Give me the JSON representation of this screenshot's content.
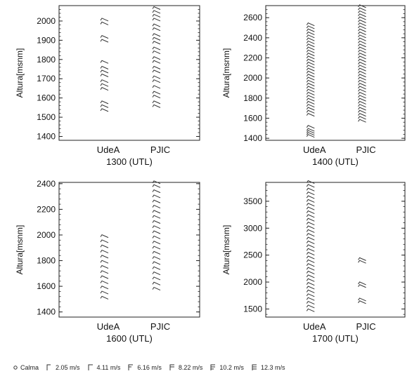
{
  "colors": {
    "axis": "#222222",
    "barb": "#333333",
    "background": "#ffffff"
  },
  "chart_data": [
    {
      "type": "scatter",
      "xlabel": "1300 (UTL)",
      "ylabel": "Altura[msnm]",
      "ylim": [
        1380,
        2080
      ],
      "yticks": [
        1400,
        1500,
        1600,
        1700,
        1800,
        1900,
        2000
      ],
      "categories": [
        "UdeA",
        "PJIC"
      ],
      "series": [
        {
          "name": "UdeA",
          "category": 0,
          "heights": [
            1530,
            1550,
            1570,
            1640,
            1660,
            1680,
            1710,
            1730,
            1750,
            1780,
            1890,
            1910,
            1980,
            2000
          ]
        },
        {
          "name": "PJIC",
          "category": 1,
          "heights": [
            1550,
            1570,
            1600,
            1620,
            1650,
            1680,
            1700,
            1730,
            1750,
            1780,
            1800,
            1830,
            1850,
            1880,
            1900,
            1920,
            1950,
            1970,
            2000,
            2020,
            2040,
            2060
          ]
        }
      ]
    },
    {
      "type": "scatter",
      "xlabel": "1400 (UTL)",
      "ylabel": "Altura[msnm]",
      "ylim": [
        1380,
        2720
      ],
      "yticks": [
        1400,
        1600,
        1800,
        2000,
        2200,
        2400,
        2600
      ],
      "categories": [
        "UdeA",
        "PJIC"
      ],
      "series": [
        {
          "name": "UdeA",
          "category": 0,
          "heights": [
            1410,
            1430,
            1450,
            1470,
            1500,
            1620,
            1650,
            1680,
            1710,
            1740,
            1770,
            1800,
            1830,
            1860,
            1890,
            1920,
            1950,
            1980,
            2010,
            2040,
            2070,
            2100,
            2130,
            2160,
            2190,
            2220,
            2250,
            2280,
            2310,
            2340,
            2370,
            2400,
            2430,
            2460,
            2490,
            2520
          ]
        },
        {
          "name": "PJIC",
          "category": 1,
          "heights": [
            1560,
            1590,
            1620,
            1650,
            1680,
            1710,
            1740,
            1770,
            1800,
            1830,
            1860,
            1890,
            1920,
            1950,
            1980,
            2010,
            2040,
            2070,
            2100,
            2130,
            2160,
            2190,
            2220,
            2250,
            2280,
            2310,
            2340,
            2370,
            2400,
            2430,
            2460,
            2490,
            2520,
            2550,
            2580,
            2610,
            2640,
            2670,
            2700
          ]
        }
      ]
    },
    {
      "type": "scatter",
      "xlabel": "1600 (UTL)",
      "ylabel": "Altura[msnm]",
      "ylim": [
        1360,
        2410
      ],
      "yticks": [
        1400,
        1600,
        1800,
        2000,
        2200,
        2400
      ],
      "categories": [
        "UdeA",
        "PJIC"
      ],
      "series": [
        {
          "name": "UdeA",
          "category": 0,
          "heights": [
            1500,
            1540,
            1580,
            1620,
            1660,
            1700,
            1740,
            1780,
            1820,
            1860,
            1900,
            1940,
            1980
          ]
        },
        {
          "name": "PJIC",
          "category": 1,
          "heights": [
            1570,
            1610,
            1650,
            1690,
            1730,
            1770,
            1810,
            1850,
            1890,
            1930,
            1970,
            2010,
            2050,
            2090,
            2130,
            2170,
            2210,
            2250,
            2290,
            2330,
            2370,
            2400
          ]
        }
      ]
    },
    {
      "type": "scatter",
      "xlabel": "1700 (UTL)",
      "ylabel": "Altura[msnm]",
      "ylim": [
        1350,
        3850
      ],
      "yticks": [
        1500,
        2000,
        2500,
        3000,
        3500
      ],
      "categories": [
        "UdeA",
        "PJIC"
      ],
      "series": [
        {
          "name": "UdeA",
          "category": 0,
          "heights": [
            1450,
            1520,
            1590,
            1660,
            1730,
            1800,
            1870,
            1940,
            2010,
            2080,
            2150,
            2220,
            2290,
            2360,
            2430,
            2500,
            2570,
            2640,
            2710,
            2780,
            2850,
            2920,
            2990,
            3060,
            3130,
            3200,
            3270,
            3340,
            3410,
            3480,
            3550,
            3620,
            3690,
            3760,
            3830
          ]
        },
        {
          "name": "PJIC",
          "category": 1,
          "heights": [
            1600,
            1650,
            1900,
            1950,
            2350,
            2400
          ]
        }
      ]
    }
  ],
  "legend": [
    {
      "label": "Calma",
      "icon": "calm-circle-icon"
    },
    {
      "label": "2.05 m/s",
      "icon": "wind-barb-icon",
      "flags": 1
    },
    {
      "label": "4.11 m/s",
      "icon": "wind-barb-icon",
      "flags": 2
    },
    {
      "label": "6.16 m/s",
      "icon": "wind-barb-icon",
      "flags": 3
    },
    {
      "label": "8.22 m/s",
      "icon": "wind-barb-icon",
      "flags": 4
    },
    {
      "label": "10.2 m/s",
      "icon": "wind-barb-icon",
      "flags": 5
    },
    {
      "label": "12.3 m/s",
      "icon": "wind-barb-icon",
      "flags": 6
    }
  ]
}
